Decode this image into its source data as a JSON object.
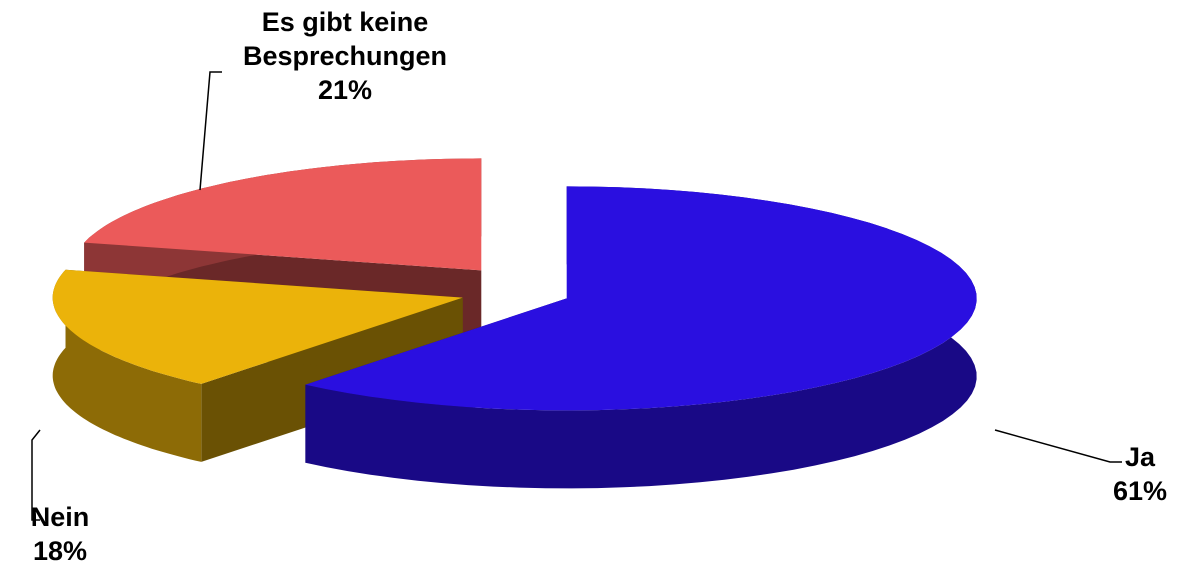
{
  "chart_data": {
    "type": "pie",
    "three_d": true,
    "exploded": true,
    "categories": [
      "Ja",
      "Nein",
      "Es gibt keine Besprechungen"
    ],
    "values": [
      61,
      18,
      21
    ],
    "value_labels": [
      "61%",
      "18%",
      "21%"
    ],
    "colors": [
      "#2a0fe0",
      "#ebb30a",
      "#eb5a5a"
    ]
  }
}
